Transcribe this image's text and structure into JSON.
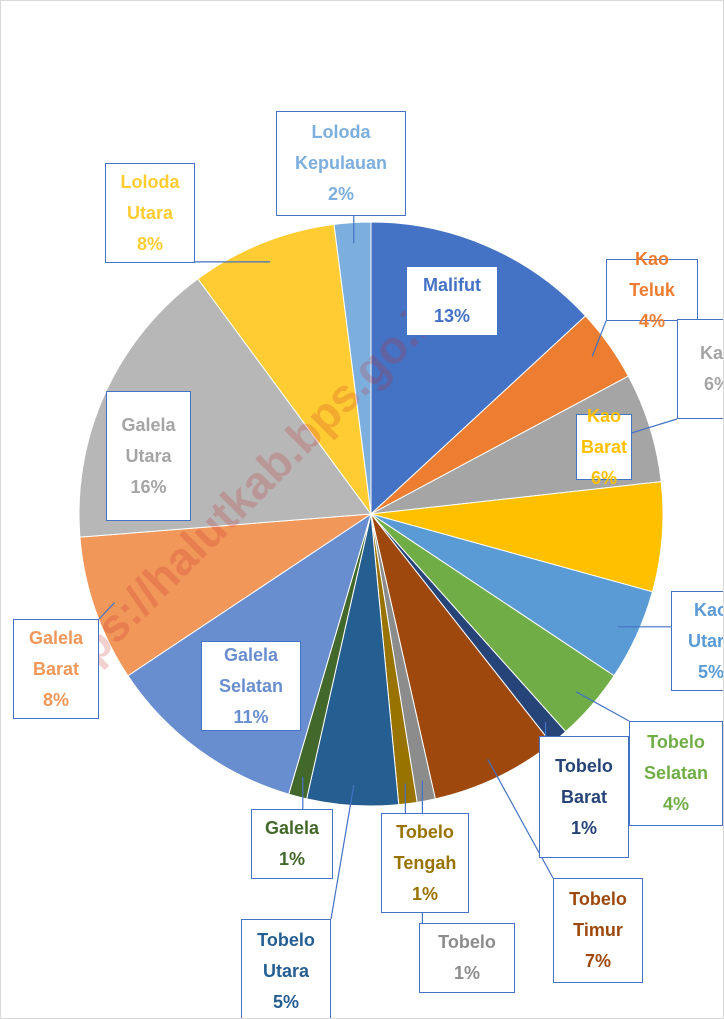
{
  "chart_data": {
    "type": "pie",
    "categories": [
      "Malifut",
      "Kao Teluk",
      "Kao",
      "Kao Barat",
      "Kao Utara",
      "Tobelo Selatan",
      "Tobelo Barat",
      "Tobelo Timur",
      "Tobelo",
      "Tobelo Tengah",
      "Tobelo Utara",
      "Galela",
      "Galela Selatan",
      "Galela Barat",
      "Galela Utara",
      "Loloda Utara",
      "Loloda Kepulauan"
    ],
    "values": [
      13,
      4,
      6,
      6,
      5,
      4,
      1,
      7,
      1,
      1,
      5,
      1,
      11,
      8,
      16,
      8,
      2
    ],
    "value_labels": [
      "13%",
      "4%",
      "6%",
      "6%",
      "5%",
      "4%",
      "1%",
      "7%",
      "1%",
      "1%",
      "5%",
      "1%",
      "11%",
      "8%",
      "16%",
      "8%",
      "2%"
    ],
    "colors": [
      "#4472c4",
      "#ed7d31",
      "#a5a5a5",
      "#ffc000",
      "#5b9bd5",
      "#70ad47",
      "#264478",
      "#9e480e",
      "#8c8c8c",
      "#997300",
      "#255e91",
      "#43682b",
      "#698ed0",
      "#f1975a",
      "#b7b7b7",
      "#ffcd33",
      "#7cafdd"
    ],
    "watermark": "https://halutkab.bps.go.id"
  }
}
